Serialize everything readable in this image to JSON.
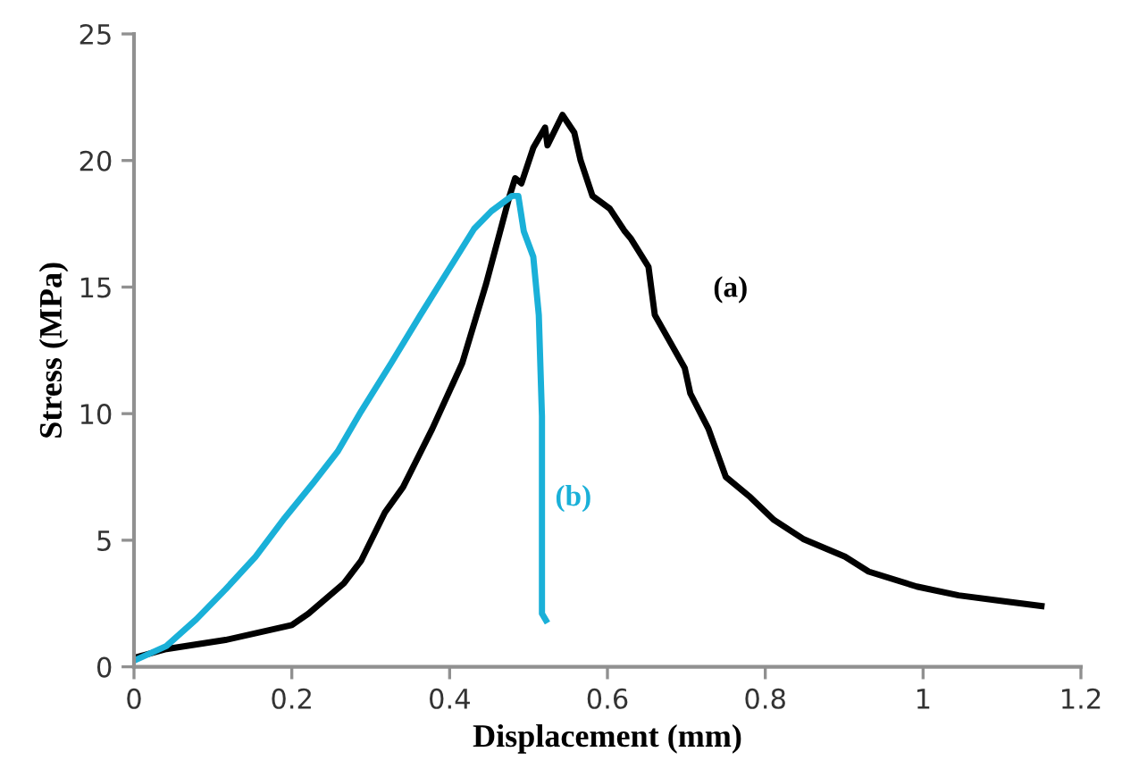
{
  "chart_data": {
    "type": "line",
    "xlabel": "Displacement (mm)",
    "ylabel": "Stress (MPa)",
    "xlim": [
      0,
      1.2
    ],
    "xticks": [
      0,
      0.2,
      0.4,
      0.6,
      0.8,
      1,
      1.2
    ],
    "ylim": [
      0,
      25
    ],
    "yticks": [
      0,
      5,
      10,
      15,
      20,
      25
    ],
    "grid": false,
    "legend": false,
    "marker": "none",
    "line_style": "solid",
    "series": [
      {
        "color": "#000000",
        "x": [
          0,
          0.041,
          0.116,
          0.2,
          0.221,
          0.266,
          0.288,
          0.318,
          0.341,
          0.378,
          0.416,
          0.446,
          0.476,
          0.483,
          0.491,
          0.506,
          0.521,
          0.524,
          0.543,
          0.558,
          0.566,
          0.581,
          0.603,
          0.622,
          0.63,
          0.652,
          0.66,
          0.698,
          0.705,
          0.728,
          0.75,
          0.781,
          0.811,
          0.848,
          0.901,
          0.931,
          0.992,
          1.045,
          1.105,
          1.15
        ],
        "values": [
          0.35,
          0.7,
          1.06,
          1.65,
          2.1,
          3.3,
          4.2,
          6.1,
          7.1,
          9.4,
          12,
          15.1,
          18.6,
          19.3,
          19.1,
          20.5,
          21.3,
          20.6,
          21.8,
          21.1,
          20,
          18.6,
          18.1,
          17.2,
          16.9,
          15.8,
          13.9,
          11.8,
          10.8,
          9.4,
          7.5,
          6.7,
          5.8,
          5.05,
          4.35,
          3.76,
          3.17,
          2.82,
          2.58,
          2.4
        ]
      },
      {
        "color": "#1ab0d8",
        "x": [
          0,
          0.041,
          0.079,
          0.116,
          0.154,
          0.191,
          0.228,
          0.258,
          0.288,
          0.326,
          0.363,
          0.401,
          0.431,
          0.453,
          0.479,
          0.487,
          0.494,
          0.506,
          0.513,
          0.517,
          0.517,
          0.522
        ],
        "values": [
          0.24,
          0.82,
          1.88,
          3.06,
          4.35,
          5.88,
          7.3,
          8.5,
          10.1,
          12,
          13.9,
          15.8,
          17.3,
          18,
          18.6,
          18.6,
          17.2,
          16.2,
          13.9,
          9.9,
          2.1,
          1.84
        ]
      }
    ],
    "annotations": [
      "(a)",
      "(b)"
    ]
  }
}
